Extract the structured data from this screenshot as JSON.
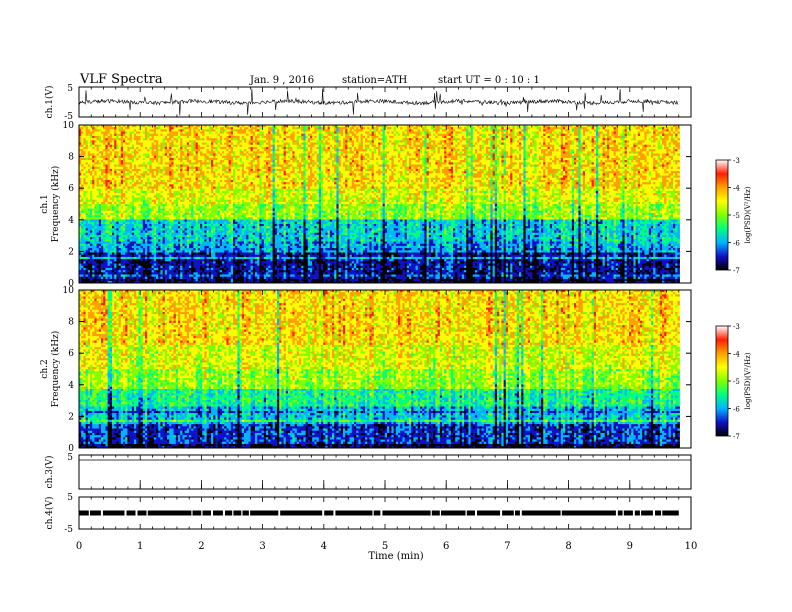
{
  "header": {
    "title": "VLF  Spectra",
    "date": "Jan.  9   , 2016",
    "station": "station=ATH",
    "start": "start  UT  =    0  : 10 : 1"
  },
  "chart_data": [
    {
      "type": "line",
      "panel": "ch1-waveform",
      "ylabel": "ch.1(V)",
      "ylim": [
        -5,
        5
      ],
      "yticks": [
        "5",
        "-5"
      ],
      "baseline": 0,
      "color": "#000000"
    },
    {
      "type": "heatmap",
      "panel": "ch1-spectrogram",
      "ylabel": "Frequency  (kHz)",
      "channel_label": "ch.1",
      "ylim": [
        0,
        10
      ],
      "yticks": [
        "0",
        "2",
        "4",
        "6",
        "8",
        "10"
      ],
      "bands": [
        {
          "from": 0,
          "to": 0.3,
          "level": -6.9
        },
        {
          "from": 0.3,
          "to": 1.9,
          "level": -6.6
        },
        {
          "from": 1.9,
          "to": 2.6,
          "level": -6.0
        },
        {
          "from": 2.6,
          "to": 4.0,
          "level": -5.8
        },
        {
          "from": 4.0,
          "to": 5.0,
          "level": -4.9
        },
        {
          "from": 5.0,
          "to": 6.0,
          "level": -4.6
        },
        {
          "from": 6.0,
          "to": 10.0,
          "level": -4.3
        }
      ]
    },
    {
      "type": "heatmap",
      "panel": "ch2-spectrogram",
      "ylabel": "Frequency  (kHz)",
      "channel_label": "ch.2",
      "ylim": [
        0,
        10
      ],
      "yticks": [
        "0",
        "2",
        "4",
        "6",
        "8",
        "10"
      ],
      "bands": [
        {
          "from": 0,
          "to": 0.3,
          "level": -6.9
        },
        {
          "from": 0.3,
          "to": 1.6,
          "level": -6.4
        },
        {
          "from": 1.6,
          "to": 2.6,
          "level": -5.9
        },
        {
          "from": 2.6,
          "to": 3.8,
          "level": -5.5
        },
        {
          "from": 3.8,
          "to": 5.0,
          "level": -4.9
        },
        {
          "from": 5.0,
          "to": 6.5,
          "level": -4.6
        },
        {
          "from": 6.5,
          "to": 10.0,
          "level": -4.3
        }
      ]
    },
    {
      "type": "line",
      "panel": "ch3-waveform",
      "ylabel": "ch.3(V)",
      "ylim": [
        -5,
        5
      ],
      "yticks": [
        "5",
        "-5"
      ],
      "color": "#000000"
    },
    {
      "type": "line",
      "panel": "ch4-waveform",
      "ylabel": "ch.4(V)",
      "ylim": [
        -5,
        5
      ],
      "yticks": [
        "5",
        "-5"
      ],
      "level": 0,
      "color": "#000000"
    }
  ],
  "colorbar": {
    "label": "log(PSD)(V²/Hz)",
    "range": [
      -7,
      -3
    ],
    "ticks": [
      "-3",
      "-4",
      "-5",
      "-6",
      "-7"
    ],
    "scheme": [
      "#000000",
      "#1010c8",
      "#00b4ff",
      "#00ff80",
      "#80ff00",
      "#ffff00",
      "#ffa000",
      "#ff2000",
      "#ffffff"
    ]
  },
  "xaxis": {
    "label": "Time  (min)",
    "range": [
      0,
      10
    ],
    "ticks": [
      "0",
      "1",
      "2",
      "3",
      "4",
      "5",
      "6",
      "7",
      "8",
      "9",
      "10"
    ],
    "data_end": 9.8
  }
}
